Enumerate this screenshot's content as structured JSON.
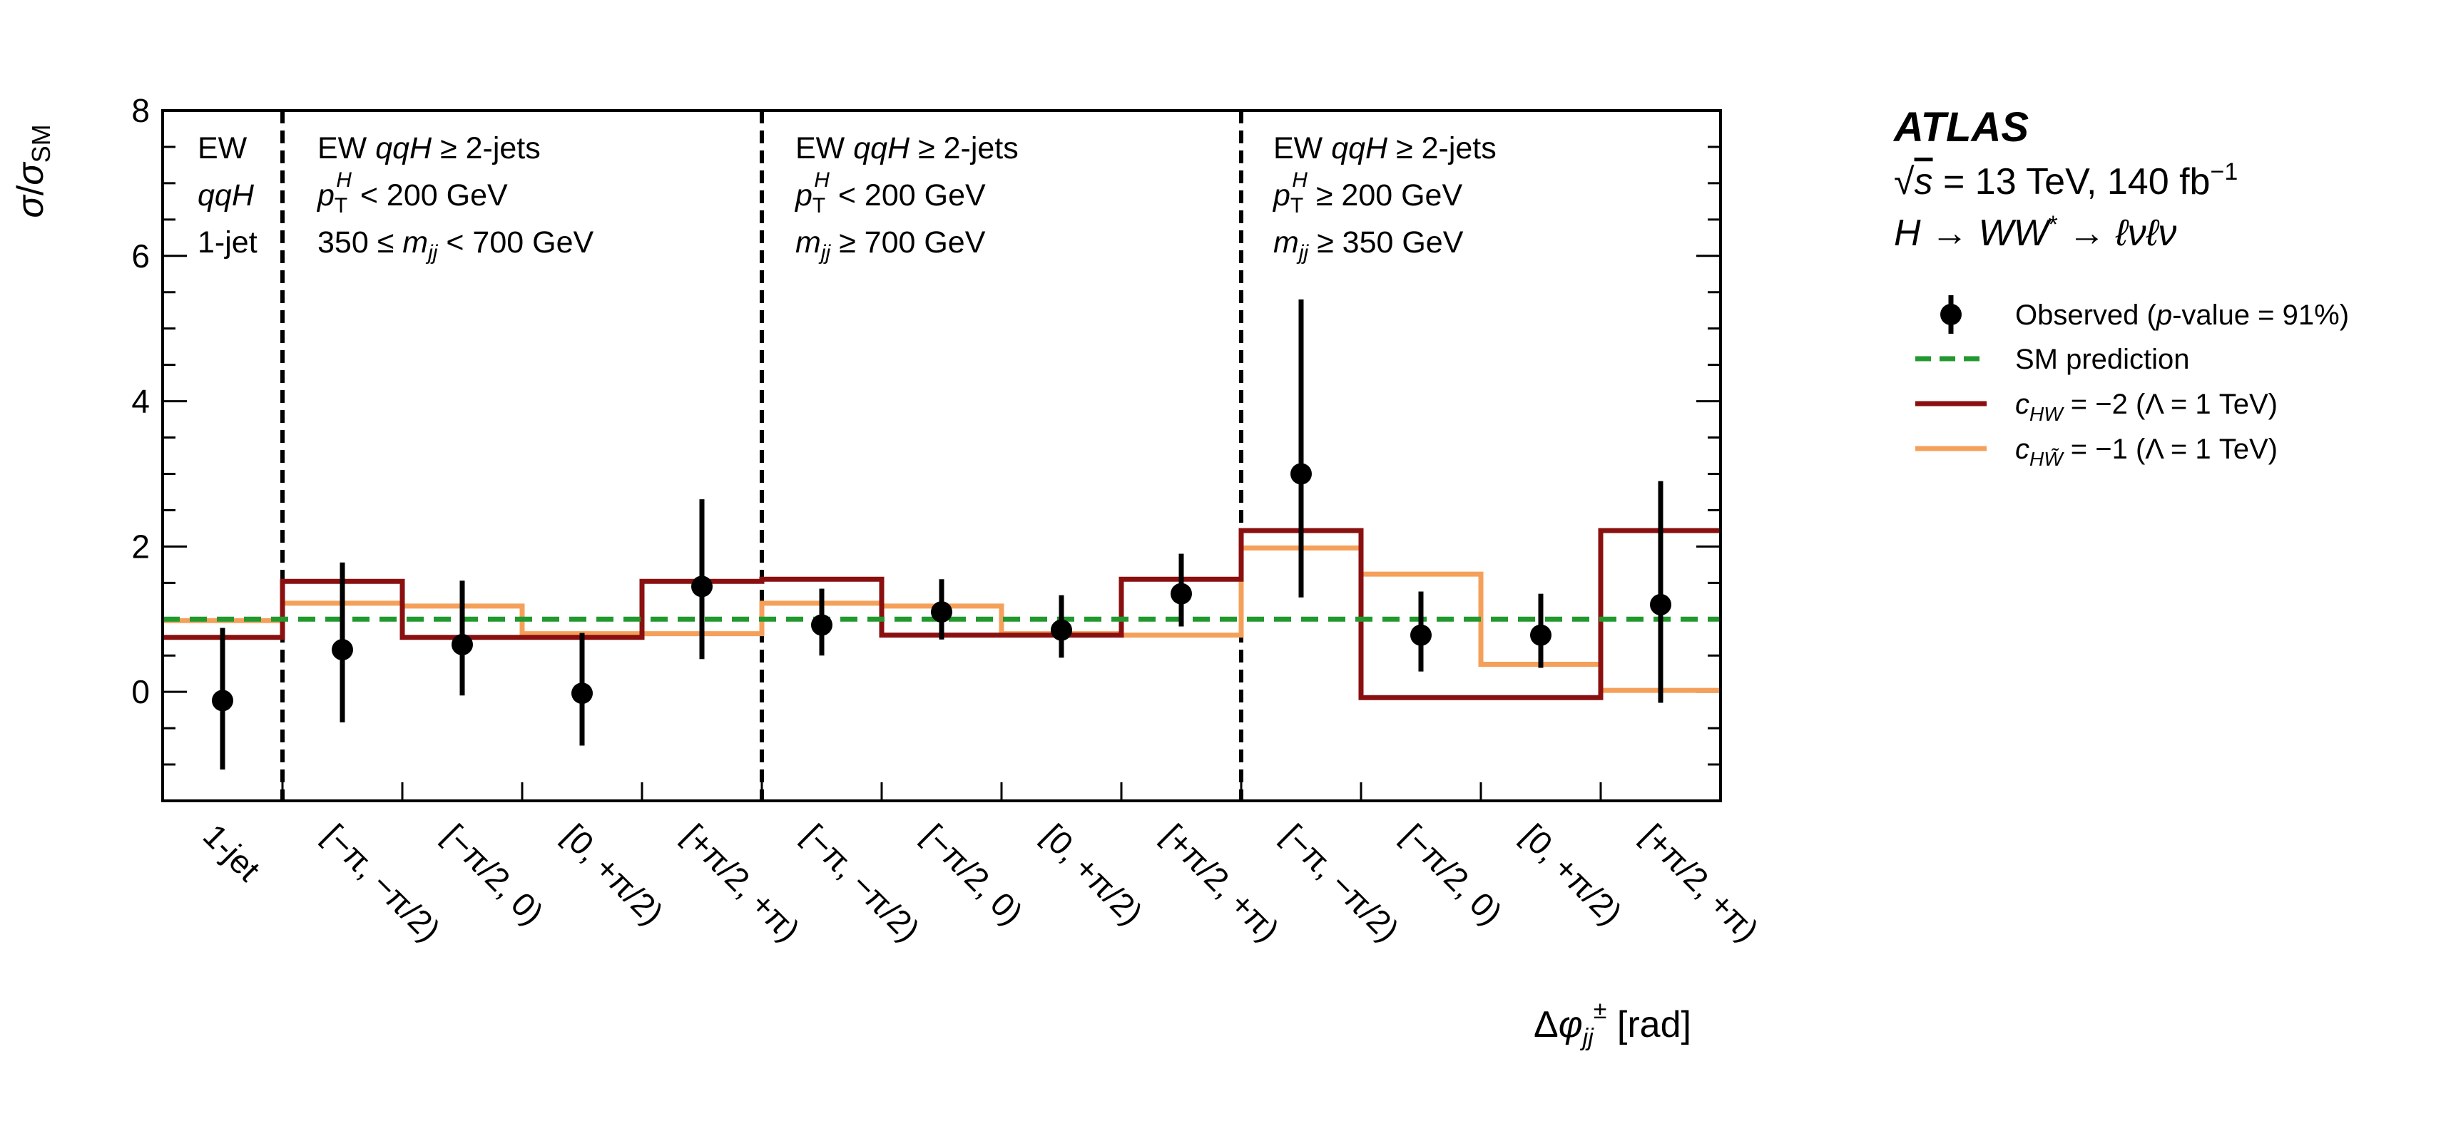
{
  "chart_data": {
    "type": "step-histogram-with-points",
    "ylabel": "σ/σ_SM",
    "xlabel": "Δφ_jj^± [rad]",
    "ylim": [
      -1.5,
      8
    ],
    "yticks": [
      0,
      2,
      4,
      6,
      8
    ],
    "categories": [
      "1-jet",
      "[−π, −π/2)",
      "[−π/2, 0)",
      "[0, +π/2)",
      "[+π/2, +π)",
      "[−π, −π/2)",
      "[−π/2, 0)",
      "[0, +π/2)",
      "[+π/2, +π)",
      "[−π, −π/2)",
      "[−π/2, 0)",
      "[0, +π/2)",
      "[+π/2, +π)"
    ],
    "observed": {
      "name": "Observed (p-value = 91%)",
      "values": [
        -0.12,
        0.58,
        0.65,
        -0.02,
        1.45,
        0.92,
        1.1,
        0.85,
        1.35,
        3.0,
        0.78,
        0.78,
        1.2
      ],
      "err_low": [
        0.95,
        1.0,
        0.7,
        0.72,
        1.0,
        0.42,
        0.38,
        0.38,
        0.45,
        1.7,
        0.5,
        0.45,
        1.35
      ],
      "err_high": [
        1.0,
        1.2,
        0.88,
        0.83,
        1.2,
        0.5,
        0.45,
        0.48,
        0.55,
        2.4,
        0.6,
        0.57,
        1.7
      ]
    },
    "series": [
      {
        "name": "SM prediction",
        "color": "#22992e",
        "values": [
          1,
          1,
          1,
          1,
          1,
          1,
          1,
          1,
          1,
          1,
          1,
          1,
          1
        ]
      },
      {
        "name": "c_HW = −2 (Λ = 1 TeV)",
        "color": "#8a1010",
        "values": [
          0.75,
          1.52,
          0.75,
          0.75,
          1.52,
          1.55,
          0.78,
          0.78,
          1.55,
          2.22,
          -0.08,
          -0.08,
          2.22
        ]
      },
      {
        "name": "c_HW̃ = −1 (Λ = 1 TeV)",
        "color": "#f5a05a",
        "values": [
          0.98,
          1.22,
          1.18,
          0.8,
          0.8,
          1.22,
          1.18,
          0.8,
          0.78,
          1.98,
          1.62,
          0.38,
          0.02
        ]
      }
    ],
    "regions": [
      {
        "lines": [
          "EW",
          "qqH",
          "1-jet"
        ]
      },
      {
        "lines": [
          "EW qqH  ≥ 2-jets",
          "p_T^H < 200 GeV",
          "350 ≤ m_jj < 700 GeV"
        ]
      },
      {
        "lines": [
          "EW qqH  ≥ 2-jets",
          "p_T^H < 200 GeV",
          "m_jj ≥ 700 GeV"
        ]
      },
      {
        "lines": [
          "EW qqH  ≥ 2-jets",
          "p_T^H ≥ 200 GeV",
          "m_jj ≥ 350 GeV"
        ]
      }
    ],
    "legend_position": "right"
  },
  "experiment": {
    "name": "ATLAS",
    "energy": "√s = 13 TeV, 140 fb⁻¹",
    "process": "H → WW* → ℓνℓν"
  },
  "legend": [
    {
      "label": "Observed (p-value = 91%)",
      "color": "#000000"
    },
    {
      "label": "SM prediction",
      "color": "#22992e"
    },
    {
      "label": "c_HW = −2 (Λ = 1 TeV)",
      "color": "#8a1010"
    },
    {
      "label": "c_HW̃ = −1 (Λ = 1 TeV)",
      "color": "#f5a05a"
    }
  ]
}
